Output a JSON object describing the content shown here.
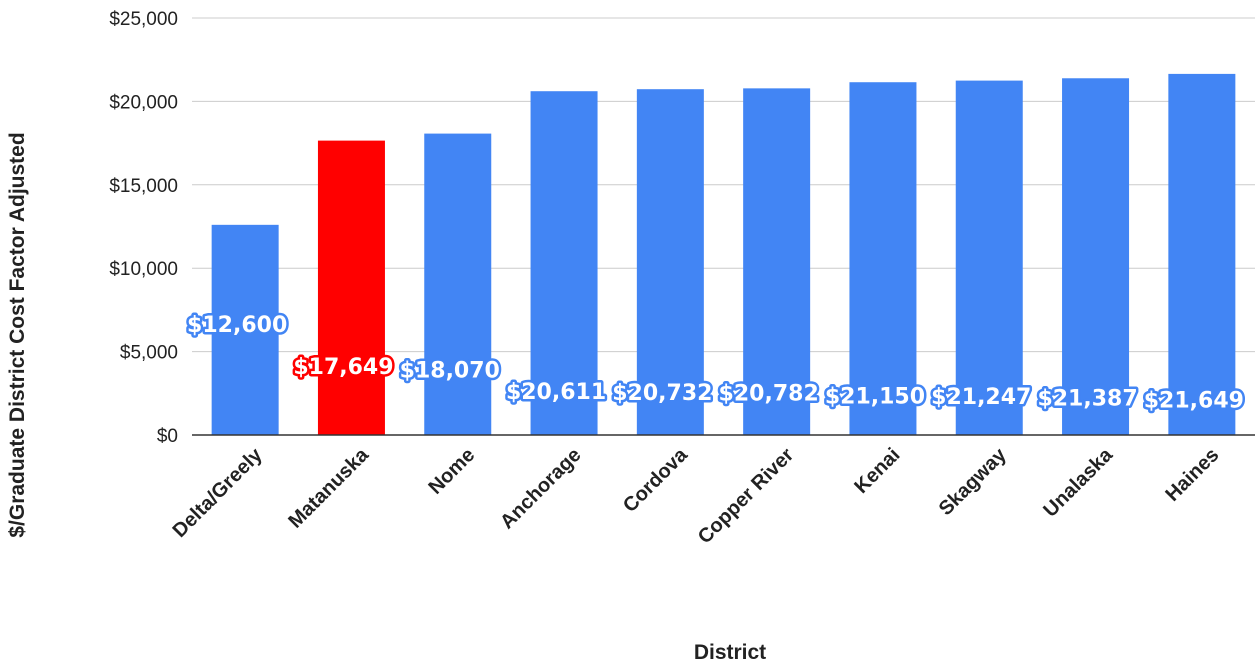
{
  "chart_data": {
    "type": "bar",
    "title": "",
    "xlabel": "District",
    "ylabel": "$/Graduate District Cost Factor Adjusted",
    "categories": [
      "Delta/Greely",
      "Matanuska",
      "Nome",
      "Anchorage",
      "Cordova",
      "Copper River",
      "Kenai",
      "Skagway",
      "Unalaska",
      "Haines"
    ],
    "values": [
      12600,
      17649,
      18070,
      20611,
      20732,
      20782,
      21150,
      21247,
      21387,
      21649
    ],
    "data_labels": [
      "$12,600",
      "$17,649",
      "$18,070",
      "$20,611",
      "$20,732",
      "$20,782",
      "$21,150",
      "$21,247",
      "$21,387",
      "$21,649"
    ],
    "bar_colors": [
      "#4285f4",
      "#ff0000",
      "#4285f4",
      "#4285f4",
      "#4285f4",
      "#4285f4",
      "#4285f4",
      "#4285f4",
      "#4285f4",
      "#4285f4"
    ],
    "label_outline_colors": [
      "#4285f4",
      "#ff0000",
      "#4285f4",
      "#4285f4",
      "#4285f4",
      "#4285f4",
      "#4285f4",
      "#4285f4",
      "#4285f4",
      "#4285f4"
    ],
    "ylim": [
      0,
      25000
    ],
    "yticks": [
      0,
      5000,
      10000,
      15000,
      20000,
      25000
    ],
    "ytick_labels": [
      "$0",
      "$5,000",
      "$10,000",
      "$15,000",
      "$20,000",
      "$25,000"
    ],
    "grid": true,
    "legend": "none"
  }
}
